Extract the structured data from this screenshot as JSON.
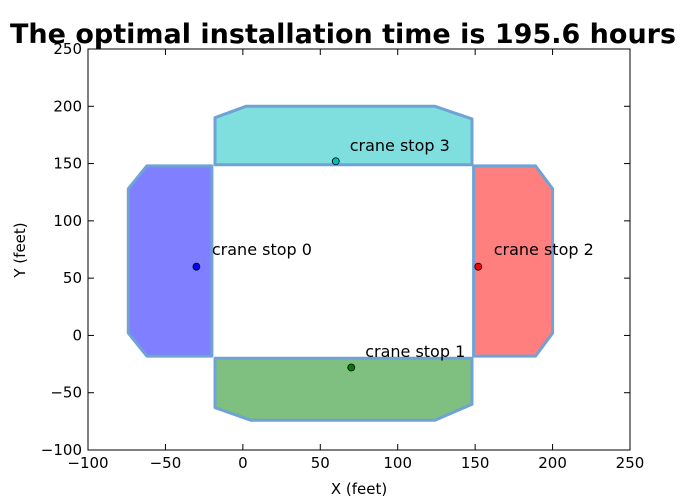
{
  "chart_data": {
    "type": "scatter",
    "title": "The optimal installation time is  195.6 hours",
    "xlabel": "X (feet)",
    "ylabel": "Y (feet)",
    "xlim": [
      -100,
      250
    ],
    "ylim": [
      -100,
      250
    ],
    "xticks": [
      -100,
      -50,
      0,
      50,
      100,
      150,
      200,
      250
    ],
    "yticks": [
      -100,
      -50,
      0,
      50,
      100,
      150,
      200,
      250
    ],
    "xtick_labels": [
      "−100",
      "−50",
      "0",
      "50",
      "100",
      "150",
      "200",
      "250"
    ],
    "ytick_labels": [
      "−100",
      "−50",
      "0",
      "50",
      "100",
      "150",
      "200",
      "250"
    ],
    "grid": false,
    "regions": [
      {
        "color": "#7f7fff",
        "outline": "#6fa3d6",
        "points": [
          [
            -20,
            148
          ],
          [
            -62,
            148
          ],
          [
            -74,
            128
          ],
          [
            -74,
            2
          ],
          [
            -62,
            -18
          ],
          [
            -20,
            -18
          ]
        ]
      },
      {
        "color": "#7fbf7f",
        "outline": "#6fa3d6",
        "points": [
          [
            -18,
            -20
          ],
          [
            148,
            -20
          ],
          [
            148,
            -60
          ],
          [
            124,
            -74
          ],
          [
            5,
            -74
          ],
          [
            -18,
            -63
          ]
        ]
      },
      {
        "color": "#ff7f7f",
        "outline": "#6fa3d6",
        "points": [
          [
            149,
            148
          ],
          [
            189,
            148
          ],
          [
            200,
            128
          ],
          [
            200,
            2
          ],
          [
            189,
            -18
          ],
          [
            149,
            -18
          ]
        ]
      },
      {
        "color": "#7fdfdf",
        "outline": "#6fa3d6",
        "points": [
          [
            -18,
            149
          ],
          [
            148,
            149
          ],
          [
            148,
            189
          ],
          [
            124,
            200
          ],
          [
            2,
            200
          ],
          [
            -18,
            190
          ]
        ]
      }
    ],
    "points": [
      {
        "label": "crane stop 0",
        "x": -30,
        "y": 60,
        "color": "#0000ff",
        "label_x": -20,
        "label_y": 70
      },
      {
        "label": "crane stop 1",
        "x": 70,
        "y": -28,
        "color": "#008000",
        "label_x": 79,
        "label_y": -19
      },
      {
        "label": "crane stop 2",
        "x": 152,
        "y": 60,
        "color": "#ff0000",
        "label_x": 162,
        "label_y": 70
      },
      {
        "label": "crane stop 3",
        "x": 60,
        "y": 152,
        "color": "#00bfbf",
        "label_x": 69,
        "label_y": 161
      }
    ]
  }
}
